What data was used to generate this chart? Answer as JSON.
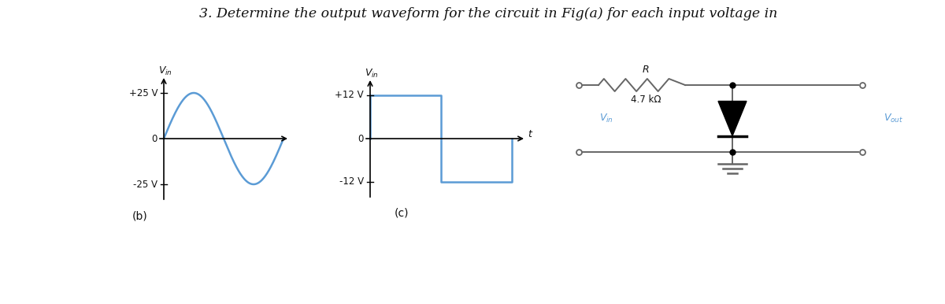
{
  "title": "3. Determine the output waveform for the circuit in Fig(a) for each input voltage in",
  "title_fontsize": 12.5,
  "bg_color": "#ffffff",
  "sine_color": "#5b9bd5",
  "square_color": "#5b9bd5",
  "circuit_color": "#666666",
  "label_color_blue": "#5b9bd5",
  "label_color_black": "#111111",
  "label_b": "(b)",
  "label_c": "(c)",
  "r_label": "R",
  "res_label": "4.7 kΩ",
  "plus25": "+25 V",
  "minus25": "-25 V",
  "plus12": "+12 V",
  "minus12": "-12 V",
  "zero": "0",
  "t_label": "t"
}
